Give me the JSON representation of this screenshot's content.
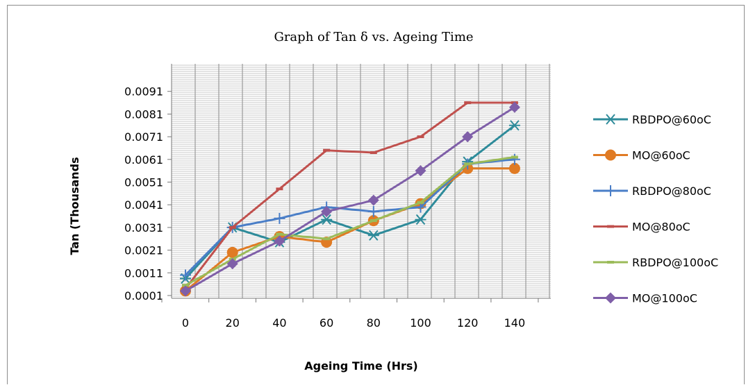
{
  "chart_data": {
    "type": "line",
    "title": "Graph of Tan δ vs. Ageing  Time",
    "xlabel": "Ageing Time (Hrs)",
    "ylabel": "Tan (Thousands",
    "categories": [
      "0",
      "20",
      "40",
      "60",
      "80",
      "100",
      "120",
      "140"
    ],
    "y_ticks": [
      "0.0001",
      "0.0011",
      "0.0021",
      "0.0031",
      "0.0041",
      "0.0051",
      "0.0061",
      "0.0071",
      "0.0081",
      "0.0091"
    ],
    "ylim": [
      0.0001,
      0.0091
    ],
    "grid": true,
    "legend_position": "right",
    "series": [
      {
        "name": "RBDPO@60oC",
        "color": "#2e8b9a",
        "marker": "asterisk",
        "values": [
          0.00085,
          0.0031,
          0.00245,
          0.00345,
          0.00275,
          0.00345,
          0.006,
          0.0076
        ]
      },
      {
        "name": "MO@60oC",
        "color": "#e07b24",
        "marker": "circle",
        "values": [
          0.0003,
          0.002,
          0.0027,
          0.00245,
          0.0034,
          0.00415,
          0.0057,
          0.0057
        ]
      },
      {
        "name": "RBDPO@80oC",
        "color": "#4a7ec7",
        "marker": "plus",
        "values": [
          0.001,
          0.0031,
          0.0035,
          0.004,
          0.0038,
          0.004,
          0.0059,
          0.0061
        ]
      },
      {
        "name": "MO@80oC",
        "color": "#c0504d",
        "marker": "dash",
        "values": [
          0.0004,
          0.0031,
          0.0048,
          0.0065,
          0.0064,
          0.0071,
          0.0086,
          0.0086
        ]
      },
      {
        "name": "RBDPO@100oC",
        "color": "#9bbb59",
        "marker": "dash",
        "values": [
          0.00055,
          0.0017,
          0.0028,
          0.0026,
          0.0034,
          0.0042,
          0.0059,
          0.0062
        ]
      },
      {
        "name": "MO@100oC",
        "color": "#7f5fa8",
        "marker": "diamond",
        "values": [
          0.0003,
          0.0015,
          0.0025,
          0.0038,
          0.0043,
          0.0056,
          0.0071,
          0.0084
        ]
      }
    ]
  }
}
